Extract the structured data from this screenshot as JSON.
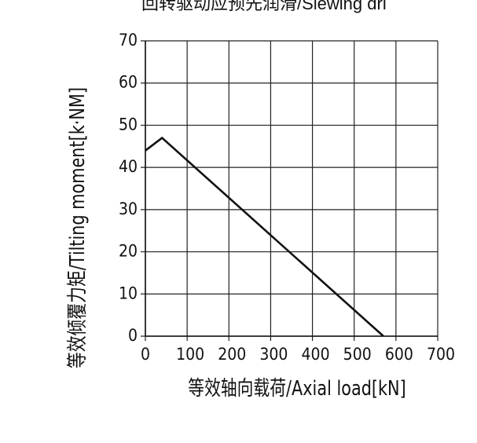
{
  "chart_data": {
    "type": "line",
    "title": "回转驱动应预先润滑/Slewing dri",
    "x_label": "等效轴向载荷/Axial load[kN]",
    "y_label": "等效倾覆力矩/Tilting moment[k·NM]",
    "x": [
      0,
      40,
      570
    ],
    "series": [
      {
        "name": "Tilting moment",
        "color": "#111111",
        "values": [
          44,
          47,
          0
        ]
      }
    ],
    "xlim": [
      0,
      700
    ],
    "xticks": [
      0,
      100,
      200,
      300,
      400,
      500,
      600,
      700
    ],
    "ylim": [
      0,
      70
    ],
    "yticks": [
      0,
      10,
      20,
      30,
      40,
      50,
      60,
      70
    ],
    "grid": true
  }
}
